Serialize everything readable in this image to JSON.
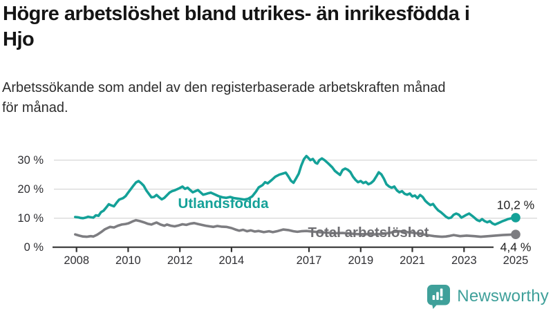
{
  "header": {
    "title_lines": [
      "Högre arbetslöshet bland utrikes- än inrikesfödda i",
      "Hjo"
    ],
    "subtitle_lines": [
      "Arbetssökande som andel av den registerbaserade arbetskraften månad",
      "för månad."
    ]
  },
  "footer": {
    "brand": "Newsworthy",
    "brand_color": "#3FA09A",
    "logo_icon": "bar-chart-speech-bubble-icon"
  },
  "chart_data": {
    "type": "line",
    "title": "Högre arbetslöshet bland utrikes- än inrikesfödda i Hjo",
    "subtitle": "Arbetssökande som andel av den registerbaserade arbetskraften månad för månad.",
    "unit": "%",
    "grid": "horizontal",
    "legend_position": "inline-labels",
    "xlim": [
      2007.8,
      2025.85
    ],
    "ylim": [
      0,
      33
    ],
    "x_ticks": [
      "2008",
      "2010",
      "2012",
      "2014",
      "2017",
      "2019",
      "2021",
      "2023",
      "2025"
    ],
    "y_ticks": [
      {
        "value": 0,
        "label": "0 %"
      },
      {
        "value": 10,
        "label": "10 %"
      },
      {
        "value": 20,
        "label": "20 %"
      },
      {
        "value": 30,
        "label": "30 %"
      }
    ],
    "axis_color": "#333333",
    "grid_color": "#dadada",
    "tick_label_color": "#2f2f33",
    "end_label_color": "#222222",
    "series": [
      {
        "name": "Utlandsfödda",
        "color": "#14A198",
        "label_color": "#14A198",
        "end_label": "10,2 %",
        "end_value": 10.2,
        "points": [
          [
            2007.95,
            10.4
          ],
          [
            2008.05,
            10.3
          ],
          [
            2008.15,
            10.1
          ],
          [
            2008.25,
            10.0
          ],
          [
            2008.35,
            10.2
          ],
          [
            2008.45,
            10.5
          ],
          [
            2008.55,
            10.3
          ],
          [
            2008.65,
            10.2
          ],
          [
            2008.75,
            11.0
          ],
          [
            2008.85,
            10.8
          ],
          [
            2008.95,
            12.1
          ],
          [
            2009.05,
            12.6
          ],
          [
            2009.15,
            13.7
          ],
          [
            2009.25,
            14.8
          ],
          [
            2009.35,
            14.4
          ],
          [
            2009.45,
            14.1
          ],
          [
            2009.55,
            15.3
          ],
          [
            2009.65,
            16.4
          ],
          [
            2009.8,
            16.9
          ],
          [
            2009.9,
            17.6
          ],
          [
            2010.0,
            18.8
          ],
          [
            2010.1,
            20.0
          ],
          [
            2010.2,
            21.2
          ],
          [
            2010.3,
            22.3
          ],
          [
            2010.4,
            22.8
          ],
          [
            2010.5,
            22.1
          ],
          [
            2010.6,
            21.2
          ],
          [
            2010.7,
            19.6
          ],
          [
            2010.8,
            18.4
          ],
          [
            2010.9,
            17.2
          ],
          [
            2011.0,
            17.3
          ],
          [
            2011.1,
            18.0
          ],
          [
            2011.2,
            17.2
          ],
          [
            2011.3,
            16.5
          ],
          [
            2011.4,
            17.0
          ],
          [
            2011.5,
            17.9
          ],
          [
            2011.6,
            18.8
          ],
          [
            2011.7,
            19.3
          ],
          [
            2011.8,
            19.6
          ],
          [
            2011.9,
            20.0
          ],
          [
            2012.0,
            20.4
          ],
          [
            2012.1,
            20.9
          ],
          [
            2012.2,
            20.1
          ],
          [
            2012.3,
            20.5
          ],
          [
            2012.4,
            19.7
          ],
          [
            2012.5,
            18.9
          ],
          [
            2012.6,
            19.3
          ],
          [
            2012.7,
            19.7
          ],
          [
            2012.8,
            18.9
          ],
          [
            2012.9,
            18.1
          ],
          [
            2013.0,
            18.3
          ],
          [
            2013.1,
            18.6
          ],
          [
            2013.2,
            18.8
          ],
          [
            2013.35,
            18.2
          ],
          [
            2013.5,
            17.6
          ],
          [
            2013.65,
            17.2
          ],
          [
            2013.8,
            17.0
          ],
          [
            2013.95,
            17.3
          ],
          [
            2014.1,
            16.9
          ],
          [
            2014.3,
            16.7
          ],
          [
            2014.5,
            16.4
          ],
          [
            2014.65,
            16.7
          ],
          [
            2014.8,
            17.5
          ],
          [
            2014.95,
            19.2
          ],
          [
            2015.05,
            20.6
          ],
          [
            2015.2,
            21.4
          ],
          [
            2015.3,
            22.4
          ],
          [
            2015.4,
            22.0
          ],
          [
            2015.55,
            23.1
          ],
          [
            2015.7,
            24.3
          ],
          [
            2015.85,
            25.0
          ],
          [
            2016.0,
            25.4
          ],
          [
            2016.1,
            25.7
          ],
          [
            2016.2,
            24.4
          ],
          [
            2016.3,
            22.9
          ],
          [
            2016.4,
            22.2
          ],
          [
            2016.5,
            23.7
          ],
          [
            2016.6,
            25.3
          ],
          [
            2016.7,
            28.1
          ],
          [
            2016.8,
            30.3
          ],
          [
            2016.9,
            31.4
          ],
          [
            2016.97,
            30.8
          ],
          [
            2017.05,
            30.0
          ],
          [
            2017.15,
            30.4
          ],
          [
            2017.25,
            29.1
          ],
          [
            2017.32,
            28.8
          ],
          [
            2017.4,
            30.0
          ],
          [
            2017.5,
            30.6
          ],
          [
            2017.6,
            30.0
          ],
          [
            2017.75,
            28.8
          ],
          [
            2017.9,
            27.5
          ],
          [
            2018.0,
            26.3
          ],
          [
            2018.1,
            25.6
          ],
          [
            2018.2,
            24.9
          ],
          [
            2018.3,
            26.6
          ],
          [
            2018.4,
            27.1
          ],
          [
            2018.5,
            26.7
          ],
          [
            2018.6,
            25.9
          ],
          [
            2018.7,
            24.3
          ],
          [
            2018.8,
            23.2
          ],
          [
            2018.9,
            22.4
          ],
          [
            2019.0,
            22.8
          ],
          [
            2019.1,
            22.1
          ],
          [
            2019.2,
            22.5
          ],
          [
            2019.3,
            21.7
          ],
          [
            2019.4,
            22.1
          ],
          [
            2019.5,
            22.9
          ],
          [
            2019.6,
            24.3
          ],
          [
            2019.7,
            25.8
          ],
          [
            2019.8,
            25.1
          ],
          [
            2019.9,
            23.6
          ],
          [
            2020.0,
            21.7
          ],
          [
            2020.1,
            20.9
          ],
          [
            2020.2,
            20.5
          ],
          [
            2020.3,
            20.9
          ],
          [
            2020.4,
            19.6
          ],
          [
            2020.5,
            18.9
          ],
          [
            2020.6,
            19.3
          ],
          [
            2020.7,
            18.4
          ],
          [
            2020.8,
            18.1
          ],
          [
            2020.9,
            18.5
          ],
          [
            2021.0,
            17.5
          ],
          [
            2021.1,
            17.8
          ],
          [
            2021.2,
            16.9
          ],
          [
            2021.3,
            18.0
          ],
          [
            2021.4,
            17.3
          ],
          [
            2021.5,
            16.0
          ],
          [
            2021.6,
            15.2
          ],
          [
            2021.7,
            14.5
          ],
          [
            2021.8,
            14.9
          ],
          [
            2021.9,
            13.7
          ],
          [
            2022.0,
            12.7
          ],
          [
            2022.1,
            12.1
          ],
          [
            2022.2,
            11.3
          ],
          [
            2022.3,
            10.5
          ],
          [
            2022.4,
            10.0
          ],
          [
            2022.5,
            10.2
          ],
          [
            2022.6,
            11.2
          ],
          [
            2022.7,
            11.6
          ],
          [
            2022.8,
            11.2
          ],
          [
            2022.9,
            10.2
          ],
          [
            2023.0,
            10.7
          ],
          [
            2023.1,
            11.2
          ],
          [
            2023.2,
            11.6
          ],
          [
            2023.3,
            10.9
          ],
          [
            2023.4,
            10.2
          ],
          [
            2023.5,
            9.4
          ],
          [
            2023.6,
            9.0
          ],
          [
            2023.7,
            9.7
          ],
          [
            2023.8,
            9.0
          ],
          [
            2023.9,
            8.6
          ],
          [
            2024.0,
            9.0
          ],
          [
            2024.1,
            8.2
          ],
          [
            2024.2,
            7.8
          ],
          [
            2024.3,
            8.2
          ],
          [
            2024.4,
            8.6
          ],
          [
            2024.5,
            9.0
          ],
          [
            2024.6,
            9.3
          ],
          [
            2024.7,
            9.7
          ],
          [
            2024.85,
            10.0
          ],
          [
            2025.0,
            10.2
          ]
        ]
      },
      {
        "name": "Total arbetslöshet",
        "color": "#7D7D81",
        "label_color": "#6E6E72",
        "end_label": "4,4 %",
        "end_value": 4.4,
        "points": [
          [
            2007.95,
            4.4
          ],
          [
            2008.1,
            4.0
          ],
          [
            2008.25,
            3.7
          ],
          [
            2008.4,
            3.6
          ],
          [
            2008.55,
            3.8
          ],
          [
            2008.65,
            3.7
          ],
          [
            2008.8,
            4.3
          ],
          [
            2008.95,
            5.2
          ],
          [
            2009.1,
            6.2
          ],
          [
            2009.2,
            6.6
          ],
          [
            2009.3,
            7.0
          ],
          [
            2009.45,
            6.8
          ],
          [
            2009.6,
            7.4
          ],
          [
            2009.75,
            7.8
          ],
          [
            2009.9,
            8.0
          ],
          [
            2010.0,
            8.2
          ],
          [
            2010.1,
            8.6
          ],
          [
            2010.2,
            9.0
          ],
          [
            2010.3,
            9.3
          ],
          [
            2010.45,
            9.0
          ],
          [
            2010.6,
            8.6
          ],
          [
            2010.75,
            8.1
          ],
          [
            2010.9,
            7.8
          ],
          [
            2011.0,
            8.2
          ],
          [
            2011.1,
            8.5
          ],
          [
            2011.25,
            7.8
          ],
          [
            2011.4,
            7.4
          ],
          [
            2011.5,
            7.8
          ],
          [
            2011.65,
            7.4
          ],
          [
            2011.8,
            7.2
          ],
          [
            2011.95,
            7.5
          ],
          [
            2012.1,
            7.9
          ],
          [
            2012.25,
            7.7
          ],
          [
            2012.4,
            8.1
          ],
          [
            2012.55,
            8.3
          ],
          [
            2012.7,
            8.0
          ],
          [
            2012.85,
            7.7
          ],
          [
            2013.0,
            7.4
          ],
          [
            2013.15,
            7.2
          ],
          [
            2013.3,
            7.0
          ],
          [
            2013.45,
            7.3
          ],
          [
            2013.6,
            7.1
          ],
          [
            2013.8,
            7.0
          ],
          [
            2014.0,
            6.6
          ],
          [
            2014.15,
            6.1
          ],
          [
            2014.3,
            5.7
          ],
          [
            2014.45,
            6.0
          ],
          [
            2014.6,
            5.5
          ],
          [
            2014.75,
            5.8
          ],
          [
            2014.9,
            5.4
          ],
          [
            2015.05,
            5.6
          ],
          [
            2015.25,
            5.2
          ],
          [
            2015.45,
            5.5
          ],
          [
            2015.6,
            5.2
          ],
          [
            2015.8,
            5.6
          ],
          [
            2016.0,
            6.1
          ],
          [
            2016.2,
            5.9
          ],
          [
            2016.4,
            5.5
          ],
          [
            2016.55,
            5.3
          ],
          [
            2016.7,
            5.5
          ],
          [
            2016.9,
            5.6
          ],
          [
            2017.1,
            5.4
          ],
          [
            2017.4,
            5.2
          ],
          [
            2017.7,
            5.0
          ],
          [
            2018.0,
            4.8
          ],
          [
            2018.3,
            4.9
          ],
          [
            2018.6,
            4.7
          ],
          [
            2018.9,
            4.5
          ],
          [
            2019.2,
            4.5
          ],
          [
            2019.5,
            4.4
          ],
          [
            2019.8,
            4.6
          ],
          [
            2020.1,
            4.9
          ],
          [
            2020.3,
            5.3
          ],
          [
            2020.5,
            5.5
          ],
          [
            2020.7,
            5.3
          ],
          [
            2020.9,
            5.1
          ],
          [
            2021.1,
            4.9
          ],
          [
            2021.3,
            4.6
          ],
          [
            2021.5,
            4.3
          ],
          [
            2021.7,
            4.0
          ],
          [
            2021.85,
            3.8
          ],
          [
            2022.0,
            3.7
          ],
          [
            2022.15,
            3.6
          ],
          [
            2022.3,
            3.7
          ],
          [
            2022.45,
            3.9
          ],
          [
            2022.6,
            4.2
          ],
          [
            2022.85,
            3.8
          ],
          [
            2023.1,
            4.0
          ],
          [
            2023.4,
            3.8
          ],
          [
            2023.65,
            3.6
          ],
          [
            2023.95,
            3.8
          ],
          [
            2024.2,
            4.0
          ],
          [
            2024.5,
            4.2
          ],
          [
            2024.8,
            4.3
          ],
          [
            2025.0,
            4.4
          ]
        ]
      }
    ]
  }
}
